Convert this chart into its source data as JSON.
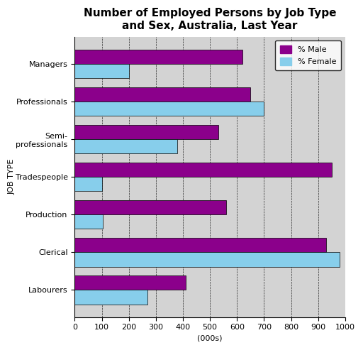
{
  "title": "Number of Employed Persons by Job Type\nand Sex, Australia, Last Year",
  "categories": [
    "Managers",
    "Professionals",
    "Semi-\nprofessionals",
    "Tradespeople",
    "Production",
    "Clerical",
    "Labourers"
  ],
  "male_values": [
    620,
    650,
    530,
    950,
    560,
    930,
    410
  ],
  "female_values": [
    200,
    700,
    380,
    100,
    105,
    980,
    270
  ],
  "male_color": "#8B008B",
  "female_color": "#87CEEB",
  "xlabel": "(000s)",
  "ylabel": "JOB TYPE",
  "xlim": [
    0,
    1000
  ],
  "xticks": [
    0,
    100,
    200,
    300,
    400,
    500,
    600,
    700,
    800,
    900,
    1000
  ],
  "bar_height": 0.38,
  "background_color": "#d3d3d3",
  "legend_male": "% Male",
  "legend_female": "% Female",
  "title_fontsize": 11,
  "label_fontsize": 8,
  "tick_fontsize": 8,
  "figwidth": 5.12,
  "figheight": 4.93
}
